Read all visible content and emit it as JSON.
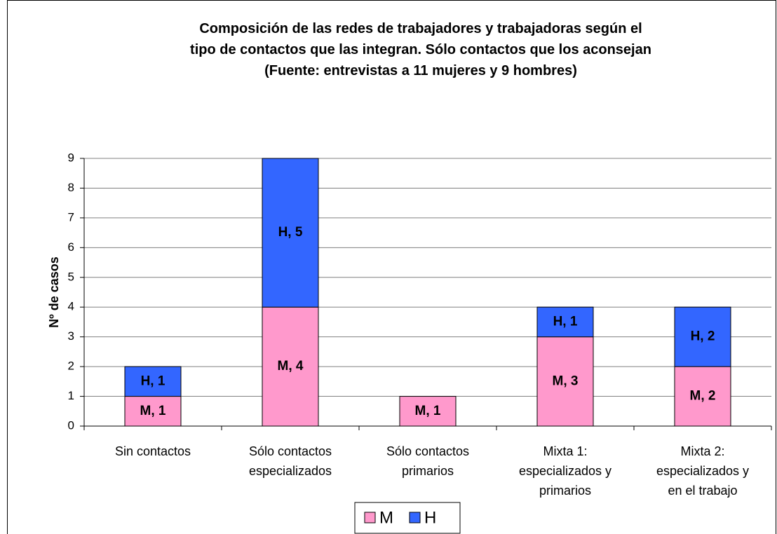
{
  "chart_data": {
    "type": "stacked_bar",
    "title": "Composición de las redes de trabajadores y trabajadoras  según el\ntipo de contactos que las integran. Sólo contactos que los aconsejan\n(Fuente: entrevistas a 11 mujeres y 9 hombres)",
    "y_label": "Nº de casos",
    "categories": [
      "Sin contactos",
      "Sólo contactos\nespecializados",
      "Sólo contactos\nprimarios",
      "Mixta 1:\nespecializados y\nprimarios",
      "Mixta 2:\nespecializados y\nen el trabajo"
    ],
    "series": [
      {
        "name": "M",
        "color": "#ff99cc",
        "values": [
          1,
          4,
          1,
          3,
          2
        ],
        "value_labels": [
          "M, 1",
          "M, 4",
          "M, 1",
          "M, 3",
          "M, 2"
        ]
      },
      {
        "name": "H",
        "color": "#3366ff",
        "values": [
          1,
          5,
          null,
          1,
          2
        ],
        "value_labels": [
          "H, 1",
          "H, 5",
          null,
          "H, 1",
          "H, 2"
        ]
      }
    ],
    "ylim": [
      0,
      9
    ],
    "yticks": [
      0,
      1,
      2,
      3,
      4,
      5,
      6,
      7,
      8,
      9
    ],
    "grid": true,
    "legend": "bottom"
  }
}
